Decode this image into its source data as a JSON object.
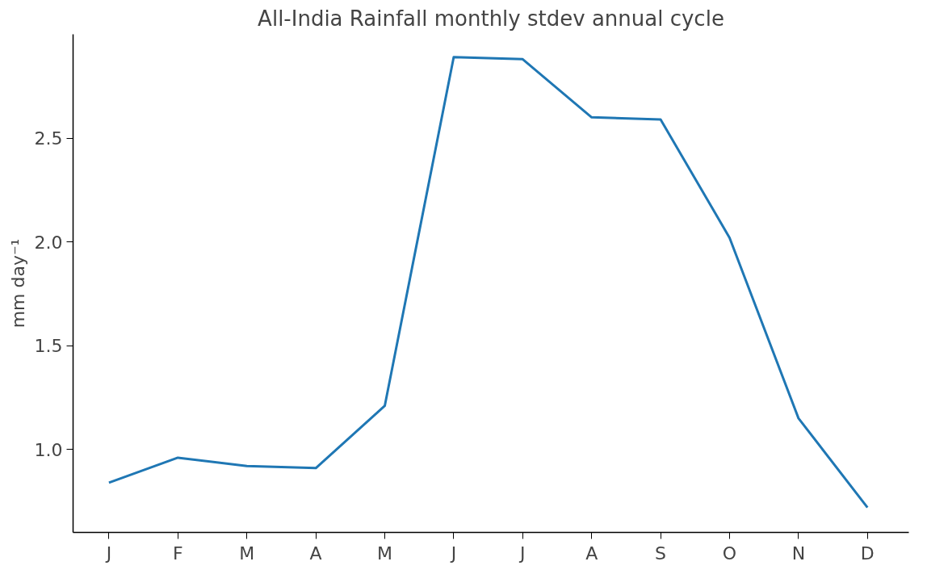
{
  "chart_data": {
    "type": "line",
    "title": "All-India Rainfall monthly stdev annual cycle",
    "ylabel": "mm day⁻¹",
    "categories": [
      "J",
      "F",
      "M",
      "A",
      "M",
      "J",
      "J",
      "A",
      "S",
      "O",
      "N",
      "D"
    ],
    "series": [
      {
        "color": "#1f77b4",
        "values": [
          0.84,
          0.96,
          0.92,
          0.91,
          1.21,
          2.89,
          2.88,
          2.6,
          2.59,
          2.02,
          1.15,
          0.72
        ]
      }
    ],
    "ylim": [
      0.6,
      3.0
    ],
    "yticks": [
      {
        "value": 1,
        "label": "1.0"
      },
      1.5,
      {
        "value": 2,
        "label": "2.0"
      },
      2.5
    ],
    "grid": false
  }
}
